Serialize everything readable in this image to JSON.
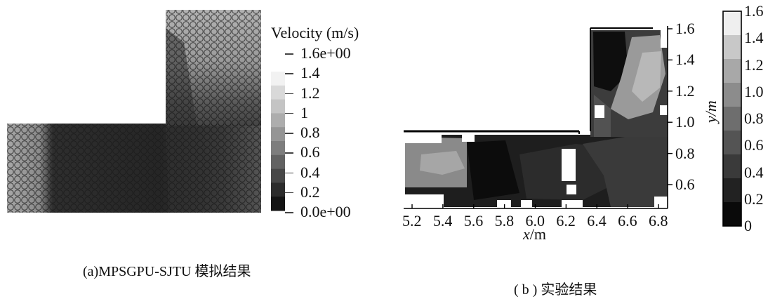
{
  "panel_a": {
    "legend": {
      "title": "Velocity (m/s)",
      "labels": [
        "1.6e+00",
        "1.4",
        "1.2",
        "1",
        "0.8",
        "0.6",
        "0.4",
        "0.2",
        "0.0e+00"
      ],
      "colors": [
        "#f2f2f2",
        "#d9d9d9",
        "#c4c4c4",
        "#adadad",
        "#959595",
        "#7d7d7d",
        "#626262",
        "#474747",
        "#2c2c2c",
        "#141414"
      ]
    },
    "caption": "(a)MPSGPU-SJTU 模拟结果"
  },
  "panel_b": {
    "x_ticks": [
      "5.2",
      "5.4",
      "5.6",
      "5.8",
      "6.0",
      "6.2",
      "6.4",
      "6.6",
      "6.8"
    ],
    "y_ticks": [
      "1.6",
      "1.4",
      "1.2",
      "1.0",
      "0.8",
      "0.6"
    ],
    "xlabel_var": "x",
    "xlabel_unit": "/m",
    "ylabel": "y/m",
    "colorbar": {
      "labels": [
        "1.6",
        "1.4",
        "1.2",
        "1.0",
        "0.8",
        "0.6",
        "0.4",
        "0.2",
        "0"
      ],
      "colors": [
        "#efefef",
        "#c8c8c8",
        "#a8a8a8",
        "#8c8c8c",
        "#6e6e6e",
        "#545454",
        "#3a3a3a",
        "#222222",
        "#0a0a0a"
      ]
    },
    "caption": "( b ) 实验结果"
  }
}
